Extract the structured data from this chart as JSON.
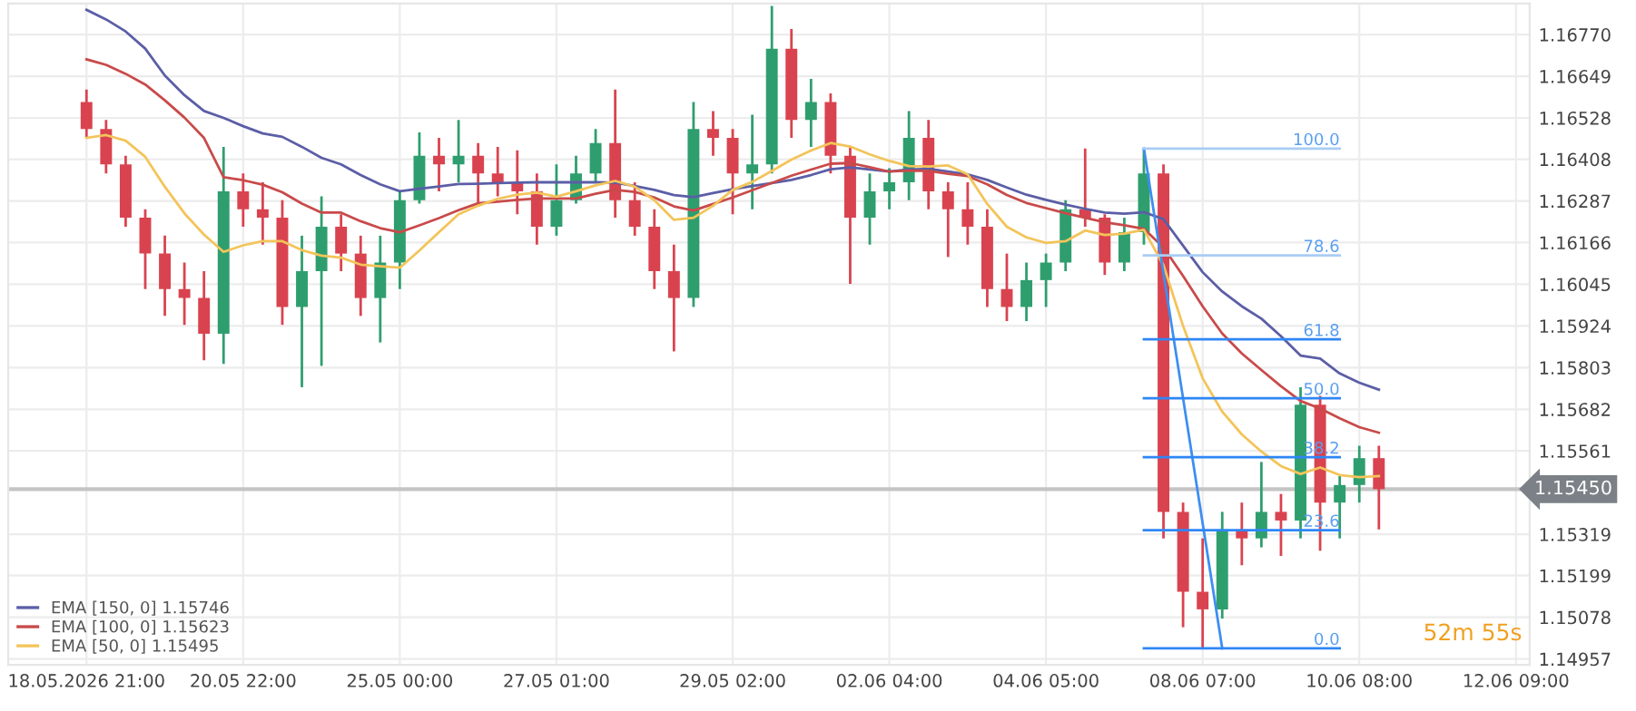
{
  "chart_data": {
    "type": "candlestick",
    "categories": [
      "18.05.2026 21:00",
      null,
      null,
      null,
      null,
      null,
      null,
      null,
      "20.05 22:00",
      null,
      null,
      null,
      null,
      null,
      null,
      null,
      "25.05 00:00",
      null,
      null,
      null,
      null,
      null,
      null,
      null,
      "27.05 01:00",
      null,
      null,
      null,
      null,
      null,
      null,
      null,
      null,
      "29.05 02:00",
      null,
      null,
      null,
      null,
      null,
      null,
      null,
      "02.06 04:00",
      null,
      null,
      null,
      null,
      null,
      null,
      null,
      "04.06 05:00",
      null,
      null,
      null,
      null,
      null,
      null,
      null,
      "08.06 07:00",
      null,
      null,
      null,
      null,
      null,
      null,
      null,
      "10.06 08:00",
      null,
      null,
      null,
      null,
      null,
      null,
      null,
      "12.06 09:00"
    ],
    "ohlc": [
      [
        1.16574,
        1.1661,
        1.1647,
        1.16496
      ],
      [
        1.16496,
        1.16522,
        1.16367,
        1.16393
      ],
      [
        1.16393,
        1.16418,
        1.16212,
        1.16238
      ],
      [
        1.16238,
        1.16263,
        1.16031,
        1.16134
      ],
      [
        1.16134,
        1.16186,
        1.15953,
        1.16031
      ],
      [
        1.16031,
        1.16108,
        1.15927,
        1.16005
      ],
      [
        1.16005,
        1.16083,
        1.15824,
        1.15901
      ],
      [
        1.15901,
        1.16444,
        1.15814,
        1.16315
      ],
      [
        1.16315,
        1.16367,
        1.16212,
        1.16263
      ],
      [
        1.16263,
        1.16341,
        1.1616,
        1.16238
      ],
      [
        1.16238,
        1.16289,
        1.15927,
        1.15979
      ],
      [
        1.15979,
        1.16186,
        1.15746,
        1.16083
      ],
      [
        1.16083,
        1.163,
        1.15808,
        1.16212
      ],
      [
        1.16212,
        1.16248,
        1.16083,
        1.16134
      ],
      [
        1.16134,
        1.16186,
        1.15953,
        1.16005
      ],
      [
        1.16005,
        1.16186,
        1.15876,
        1.16108
      ],
      [
        1.16108,
        1.16315,
        1.16031,
        1.16289
      ],
      [
        1.16289,
        1.16486,
        1.16279,
        1.16418
      ],
      [
        1.16418,
        1.1647,
        1.16315,
        1.16393
      ],
      [
        1.16393,
        1.16522,
        1.16341,
        1.16418
      ],
      [
        1.16418,
        1.16455,
        1.16279,
        1.16367
      ],
      [
        1.16367,
        1.16444,
        1.163,
        1.16341
      ],
      [
        1.16341,
        1.16434,
        1.16248,
        1.16315
      ],
      [
        1.16315,
        1.16367,
        1.1616,
        1.16212
      ],
      [
        1.16212,
        1.16393,
        1.16186,
        1.16289
      ],
      [
        1.16289,
        1.16418,
        1.16279,
        1.16367
      ],
      [
        1.16367,
        1.16496,
        1.16341,
        1.16455
      ],
      [
        1.16455,
        1.1661,
        1.16238,
        1.16289
      ],
      [
        1.16289,
        1.16341,
        1.16186,
        1.16212
      ],
      [
        1.16212,
        1.16263,
        1.16031,
        1.16083
      ],
      [
        1.16083,
        1.1616,
        1.1585,
        1.16005
      ],
      [
        1.16005,
        1.16574,
        1.15979,
        1.16496
      ],
      [
        1.16496,
        1.16548,
        1.16418,
        1.1647
      ],
      [
        1.1647,
        1.16496,
        1.16248,
        1.16367
      ],
      [
        1.16367,
        1.16537,
        1.16263,
        1.16393
      ],
      [
        1.16393,
        1.16853,
        1.16367,
        1.16729
      ],
      [
        1.16729,
        1.16786,
        1.1647,
        1.16522
      ],
      [
        1.16522,
        1.16641,
        1.16444,
        1.16574
      ],
      [
        1.16574,
        1.16599,
        1.16367,
        1.16418
      ],
      [
        1.16418,
        1.16444,
        1.16046,
        1.16238
      ],
      [
        1.16238,
        1.16367,
        1.1616,
        1.16315
      ],
      [
        1.16315,
        1.16382,
        1.16263,
        1.16341
      ],
      [
        1.16341,
        1.16548,
        1.16289,
        1.1647
      ],
      [
        1.1647,
        1.16522,
        1.16263,
        1.16315
      ],
      [
        1.16315,
        1.16341,
        1.16124,
        1.16263
      ],
      [
        1.16263,
        1.16341,
        1.1616,
        1.16212
      ],
      [
        1.16212,
        1.16263,
        1.15979,
        1.16031
      ],
      [
        1.16031,
        1.16134,
        1.15938,
        1.15979
      ],
      [
        1.15979,
        1.16108,
        1.15938,
        1.16057
      ],
      [
        1.16057,
        1.16134,
        1.15979,
        1.16108
      ],
      [
        1.16108,
        1.16289,
        1.16083,
        1.16263
      ],
      [
        1.16263,
        1.16439,
        1.16212,
        1.16238
      ],
      [
        1.16238,
        1.16248,
        1.16072,
        1.16108
      ],
      [
        1.16108,
        1.16238,
        1.16083,
        1.16196
      ],
      [
        1.16196,
        1.16439,
        1.1616,
        1.16367
      ],
      [
        1.16367,
        1.16393,
        1.15307,
        1.15384
      ],
      [
        1.15384,
        1.15411,
        1.15049,
        1.15152
      ],
      [
        1.15152,
        1.15307,
        1.14986,
        1.15101
      ],
      [
        1.15101,
        1.15384,
        1.15074,
        1.15333
      ],
      [
        1.15333,
        1.15411,
        1.15229,
        1.15307
      ],
      [
        1.15307,
        1.15529,
        1.15281,
        1.15384
      ],
      [
        1.15384,
        1.15436,
        1.15256,
        1.15359
      ],
      [
        1.15359,
        1.15746,
        1.15307,
        1.15695
      ],
      [
        1.15695,
        1.15721,
        1.15271,
        1.15411
      ],
      [
        1.15411,
        1.15488,
        1.15307,
        1.15462
      ],
      [
        1.15462,
        1.15576,
        1.15411,
        1.1554
      ],
      [
        1.1554,
        1.15576,
        1.15333,
        1.1545
      ],
      null,
      null,
      null,
      null,
      null,
      null,
      null
    ],
    "colors": [
      "#d9434f",
      "#d9434f",
      "#d9434f",
      "#d9434f",
      "#d9434f",
      "#d9434f",
      "#d9434f",
      "#2f9e6e",
      "#d9434f",
      "#d9434f",
      "#d9434f",
      "#2f9e6e",
      "#2f9e6e",
      "#d9434f",
      "#d9434f",
      "#2f9e6e",
      "#2f9e6e",
      "#2f9e6e",
      "#d9434f",
      "#2f9e6e",
      "#d9434f",
      "#d9434f",
      "#d9434f",
      "#d9434f",
      "#2f9e6e",
      "#2f9e6e",
      "#2f9e6e",
      "#d9434f",
      "#d9434f",
      "#d9434f",
      "#d9434f",
      "#2f9e6e",
      "#d9434f",
      "#d9434f",
      "#2f9e6e",
      "#2f9e6e",
      "#d9434f",
      "#2f9e6e",
      "#d9434f",
      "#d9434f",
      "#2f9e6e",
      "#2f9e6e",
      "#2f9e6e",
      "#d9434f",
      "#d9434f",
      "#d9434f",
      "#d9434f",
      "#d9434f",
      "#2f9e6e",
      "#2f9e6e",
      "#2f9e6e",
      "#d9434f",
      "#d9434f",
      "#2f9e6e",
      "#2f9e6e",
      "#d9434f",
      "#d9434f",
      "#d9434f",
      "#2f9e6e",
      "#d9434f",
      "#2f9e6e",
      "#d9434f",
      "#2f9e6e",
      "#d9434f",
      "#2f9e6e",
      "#2f9e6e",
      "#d9434f",
      null,
      null,
      null,
      null,
      null,
      null,
      null
    ],
    "series": [
      {
        "type": "line",
        "name": "EMA [150, 0] 1.15746",
        "color": "#5b5ea6",
        "values": [
          1.16842,
          1.16814,
          1.16779,
          1.16729,
          1.16651,
          1.16594,
          1.16548,
          1.16528,
          1.16504,
          1.16483,
          1.16473,
          1.16444,
          1.16412,
          1.16393,
          1.16362,
          1.16335,
          1.16315,
          1.16322,
          1.16329,
          1.16336,
          1.16337,
          1.16339,
          1.1634,
          1.16341,
          1.16341,
          1.16341,
          1.16341,
          1.1634,
          1.1633,
          1.16319,
          1.16304,
          1.16298,
          1.1631,
          1.16321,
          1.1633,
          1.16339,
          1.16348,
          1.16362,
          1.16379,
          1.16384,
          1.16378,
          1.16372,
          1.16378,
          1.1638,
          1.16372,
          1.16364,
          1.16348,
          1.16326,
          1.16305,
          1.1629,
          1.16276,
          1.16264,
          1.16253,
          1.1625,
          1.16254,
          1.16234,
          1.16157,
          1.1608,
          1.16024,
          1.15981,
          1.15945,
          1.15894,
          1.15838,
          1.15829,
          1.15786,
          1.15759,
          1.15739,
          null,
          null,
          null,
          null,
          null,
          null,
          null
        ]
      },
      {
        "type": "line",
        "name": "EMA [100, 0] 1.15623",
        "color": "#c94a4a",
        "values": [
          1.16698,
          1.16682,
          1.16656,
          1.16625,
          1.16579,
          1.16529,
          1.1647,
          1.16356,
          1.16347,
          1.16334,
          1.16312,
          1.16279,
          1.16253,
          1.16253,
          1.16228,
          1.16208,
          1.16196,
          1.16216,
          1.16237,
          1.1626,
          1.1628,
          1.16285,
          1.1629,
          1.16294,
          1.16294,
          1.16294,
          1.16308,
          1.16319,
          1.16313,
          1.16297,
          1.16271,
          1.16259,
          1.16278,
          1.16297,
          1.16318,
          1.16339,
          1.1636,
          1.16378,
          1.16395,
          1.16397,
          1.16385,
          1.16372,
          1.16375,
          1.16374,
          1.16366,
          1.16359,
          1.16335,
          1.16304,
          1.16281,
          1.16266,
          1.16251,
          1.16238,
          1.16225,
          1.16216,
          1.16206,
          1.16152,
          1.16069,
          1.15981,
          1.15902,
          1.15844,
          1.15796,
          1.15749,
          1.15706,
          1.15684,
          1.15656,
          1.1563,
          1.15614,
          null,
          null,
          null,
          null,
          null,
          null,
          null
        ]
      },
      {
        "type": "line",
        "name": "EMA [50, 0] 1.15495",
        "color": "#f3c45a",
        "values": [
          1.1647,
          1.16478,
          1.16462,
          1.16415,
          1.16328,
          1.16251,
          1.16189,
          1.16139,
          1.16158,
          1.1617,
          1.1617,
          1.16144,
          1.16128,
          1.16122,
          1.16102,
          1.16097,
          1.16093,
          1.16143,
          1.16196,
          1.16248,
          1.16273,
          1.16293,
          1.16305,
          1.16311,
          1.16299,
          1.16315,
          1.16332,
          1.16345,
          1.16328,
          1.16289,
          1.16232,
          1.16238,
          1.16273,
          1.16319,
          1.16342,
          1.16374,
          1.16407,
          1.16433,
          1.16455,
          1.16445,
          1.16422,
          1.16403,
          1.16388,
          1.16387,
          1.1639,
          1.16364,
          1.16278,
          1.16212,
          1.16181,
          1.16165,
          1.1617,
          1.16201,
          1.16188,
          1.16192,
          1.16203,
          1.161,
          1.15924,
          1.15772,
          1.15675,
          1.15609,
          1.15559,
          1.15517,
          1.15494,
          1.15513,
          1.15491,
          1.15485,
          1.15488,
          null,
          null,
          null,
          null,
          null,
          null,
          null
        ]
      },
      {
        "type": "line",
        "color": "#3d8ef0",
        "values": [
          null,
          null,
          null,
          null,
          null,
          null,
          null,
          null,
          null,
          null,
          null,
          null,
          null,
          null,
          null,
          null,
          null,
          null,
          null,
          null,
          null,
          null,
          null,
          null,
          null,
          null,
          null,
          null,
          null,
          null,
          null,
          null,
          null,
          null,
          null,
          null,
          null,
          null,
          null,
          null,
          null,
          null,
          null,
          null,
          null,
          null,
          null,
          null,
          null,
          null,
          null,
          null,
          null,
          null,
          1.16439,
          1.16076,
          1.15714,
          1.15351,
          1.14988,
          null,
          null,
          null,
          null,
          null,
          null,
          null,
          null,
          null,
          null,
          null,
          null,
          null,
          null,
          null
        ]
      },
      {
        "type": "step",
        "name": "100.0",
        "color": "#a9cdf5",
        "values": [
          null,
          null,
          null,
          null,
          null,
          null,
          null,
          null,
          null,
          null,
          null,
          null,
          null,
          null,
          null,
          null,
          null,
          null,
          null,
          null,
          null,
          null,
          null,
          null,
          null,
          null,
          null,
          null,
          null,
          null,
          null,
          null,
          null,
          null,
          null,
          null,
          null,
          null,
          null,
          null,
          null,
          null,
          null,
          null,
          null,
          null,
          null,
          null,
          null,
          null,
          null,
          null,
          null,
          null,
          1.16439,
          1.16439,
          1.16439,
          1.16439,
          1.16439,
          1.16439,
          1.16439,
          1.16439,
          1.16439,
          1.16439,
          1.16439,
          null,
          null,
          null,
          null,
          null,
          null,
          null,
          null,
          null
        ]
      },
      {
        "type": "step",
        "name": "78.6",
        "color": "#a9cdf5",
        "values": [
          null,
          null,
          null,
          null,
          null,
          null,
          null,
          null,
          null,
          null,
          null,
          null,
          null,
          null,
          null,
          null,
          null,
          null,
          null,
          null,
          null,
          null,
          null,
          null,
          null,
          null,
          null,
          null,
          null,
          null,
          null,
          null,
          null,
          null,
          null,
          null,
          null,
          null,
          null,
          null,
          null,
          null,
          null,
          null,
          null,
          null,
          null,
          null,
          null,
          null,
          null,
          null,
          null,
          null,
          1.16129,
          1.16129,
          1.16129,
          1.16129,
          1.16129,
          1.16129,
          1.16129,
          1.16129,
          1.16129,
          1.16129,
          1.16129,
          null,
          null,
          null,
          null,
          null,
          null,
          null,
          null,
          null
        ]
      },
      {
        "type": "step",
        "name": "61.8",
        "color": "#2f86f6",
        "values": [
          null,
          null,
          null,
          null,
          null,
          null,
          null,
          null,
          null,
          null,
          null,
          null,
          null,
          null,
          null,
          null,
          null,
          null,
          null,
          null,
          null,
          null,
          null,
          null,
          null,
          null,
          null,
          null,
          null,
          null,
          null,
          null,
          null,
          null,
          null,
          null,
          null,
          null,
          null,
          null,
          null,
          null,
          null,
          null,
          null,
          null,
          null,
          null,
          null,
          null,
          null,
          null,
          null,
          null,
          1.15885,
          1.15885,
          1.15885,
          1.15885,
          1.15885,
          1.15885,
          1.15885,
          1.15885,
          1.15885,
          1.15885,
          1.15885,
          null,
          null,
          null,
          null,
          null,
          null,
          null,
          null,
          null
        ]
      },
      {
        "type": "step",
        "name": "50.0",
        "color": "#2f86f6",
        "values": [
          null,
          null,
          null,
          null,
          null,
          null,
          null,
          null,
          null,
          null,
          null,
          null,
          null,
          null,
          null,
          null,
          null,
          null,
          null,
          null,
          null,
          null,
          null,
          null,
          null,
          null,
          null,
          null,
          null,
          null,
          null,
          null,
          null,
          null,
          null,
          null,
          null,
          null,
          null,
          null,
          null,
          null,
          null,
          null,
          null,
          null,
          null,
          null,
          null,
          null,
          null,
          null,
          null,
          null,
          1.15714,
          1.15714,
          1.15714,
          1.15714,
          1.15714,
          1.15714,
          1.15714,
          1.15714,
          1.15714,
          1.15714,
          1.15714,
          null,
          null,
          null,
          null,
          null,
          null,
          null,
          null,
          null
        ]
      },
      {
        "type": "step",
        "name": "38.2",
        "color": "#2f86f6",
        "values": [
          null,
          null,
          null,
          null,
          null,
          null,
          null,
          null,
          null,
          null,
          null,
          null,
          null,
          null,
          null,
          null,
          null,
          null,
          null,
          null,
          null,
          null,
          null,
          null,
          null,
          null,
          null,
          null,
          null,
          null,
          null,
          null,
          null,
          null,
          null,
          null,
          null,
          null,
          null,
          null,
          null,
          null,
          null,
          null,
          null,
          null,
          null,
          null,
          null,
          null,
          null,
          null,
          null,
          null,
          1.15543,
          1.15543,
          1.15543,
          1.15543,
          1.15543,
          1.15543,
          1.15543,
          1.15543,
          1.15543,
          1.15543,
          1.15543,
          null,
          null,
          null,
          null,
          null,
          null,
          null,
          null,
          null
        ]
      },
      {
        "type": "step",
        "name": "23.6",
        "color": "#2f86f6",
        "values": [
          null,
          null,
          null,
          null,
          null,
          null,
          null,
          null,
          null,
          null,
          null,
          null,
          null,
          null,
          null,
          null,
          null,
          null,
          null,
          null,
          null,
          null,
          null,
          null,
          null,
          null,
          null,
          null,
          null,
          null,
          null,
          null,
          null,
          null,
          null,
          null,
          null,
          null,
          null,
          null,
          null,
          null,
          null,
          null,
          null,
          null,
          null,
          null,
          null,
          null,
          null,
          null,
          null,
          null,
          1.15331,
          1.15331,
          1.15331,
          1.15331,
          1.15331,
          1.15331,
          1.15331,
          1.15331,
          1.15331,
          1.15331,
          1.15331,
          null,
          null,
          null,
          null,
          null,
          null,
          null,
          null,
          null
        ]
      },
      {
        "type": "step",
        "name": "0.0",
        "color": "#2f86f6",
        "values": [
          null,
          null,
          null,
          null,
          null,
          null,
          null,
          null,
          null,
          null,
          null,
          null,
          null,
          null,
          null,
          null,
          null,
          null,
          null,
          null,
          null,
          null,
          null,
          null,
          null,
          null,
          null,
          null,
          null,
          null,
          null,
          null,
          null,
          null,
          null,
          null,
          null,
          null,
          null,
          null,
          null,
          null,
          null,
          null,
          null,
          null,
          null,
          null,
          null,
          null,
          null,
          null,
          null,
          null,
          1.14988,
          1.14988,
          1.14988,
          1.14988,
          1.14988,
          1.14988,
          1.14988,
          1.14988,
          1.14988,
          1.14988,
          1.14988,
          null,
          null,
          null,
          null,
          null,
          null,
          null,
          null,
          null
        ]
      }
    ],
    "ref_lines": [
      {
        "axis": "y",
        "value": 1.1545,
        "label": "1.15450",
        "color": "#c4c4c4"
      }
    ],
    "annotations": [
      "52m 55s"
    ],
    "ylim": [
      1.1494,
      1.1686
    ],
    "yticks": [
      {
        "value": 1.1677,
        "label": "1.16770"
      },
      {
        "value": 1.16649,
        "label": "1.16649"
      },
      {
        "value": 1.16528,
        "label": "1.16528"
      },
      {
        "value": 1.16408,
        "label": "1.16408"
      },
      {
        "value": 1.16287,
        "label": "1.16287"
      },
      {
        "value": 1.16166,
        "label": "1.16166"
      },
      {
        "value": 1.16045,
        "label": "1.16045"
      },
      {
        "value": 1.15924,
        "label": "1.15924"
      },
      {
        "value": 1.15803,
        "label": "1.15803"
      },
      {
        "value": 1.15682,
        "label": "1.15682"
      },
      {
        "value": 1.15561,
        "label": "1.15561"
      },
      {
        "value": 1.15319,
        "label": "1.15319"
      },
      {
        "value": 1.15199,
        "label": "1.15199"
      },
      {
        "value": 1.15078,
        "label": "1.15078"
      },
      {
        "value": 1.14957,
        "label": "1.14957"
      }
    ],
    "grid": true,
    "legend": "bottom left"
  }
}
